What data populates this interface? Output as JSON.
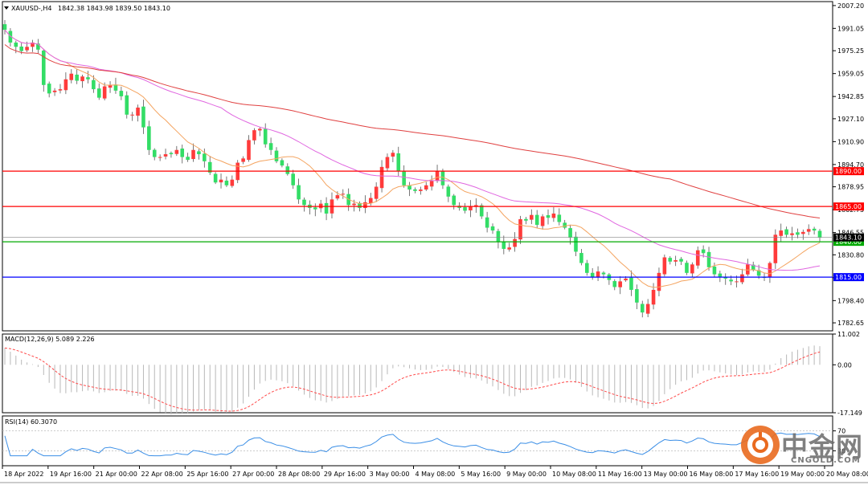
{
  "header": {
    "symbol": "XAUUSD-,H4",
    "ohlc": "1842.38 1843.98 1839.50 1843.10"
  },
  "chart_data": [
    {
      "type": "candlestick",
      "panel": "main",
      "title": "XAUUSD-,H4",
      "ylim": [
        1777,
        2010
      ],
      "y_ticks": [
        "2007.20",
        "1991.05",
        "1975.25",
        "1959.05",
        "1942.85",
        "1927.10",
        "1910.90",
        "1894.70",
        "1878.95",
        "1862.75",
        "1846.55",
        "1830.80",
        "1814.60",
        "1798.40",
        "1782.65"
      ],
      "x_ticks": [
        "18 Apr 2022",
        "19 Apr 16:00",
        "21 Apr 00:00",
        "22 Apr 08:00",
        "25 Apr 16:00",
        "27 Apr 00:00",
        "28 Apr 08:00",
        "29 Apr 16:00",
        "3 May 00:00",
        "4 May 08:00",
        "5 May 16:00",
        "9 May 00:00",
        "10 May 08:00",
        "11 May 16:00",
        "13 May 00:00",
        "16 May 08:00",
        "17 May 16:00",
        "19 May 00:00",
        "20 May 08:00"
      ],
      "close": [
        1990,
        1981,
        1978,
        1975,
        1978,
        1981,
        1976,
        1951,
        1945,
        1947,
        1948,
        1955,
        1959,
        1954,
        1957,
        1955,
        1948,
        1942,
        1950,
        1951,
        1947,
        1943,
        1930,
        1930,
        1935,
        1921,
        1905,
        1900,
        1900,
        1902,
        1902,
        1905,
        1900,
        1898,
        1905,
        1902,
        1897,
        1889,
        1882,
        1884,
        1880,
        1884,
        1896,
        1899,
        1912,
        1919,
        1920,
        1909,
        1905,
        1897,
        1894,
        1888,
        1880,
        1870,
        1866,
        1864,
        1863,
        1867,
        1860,
        1870,
        1873,
        1874,
        1866,
        1867,
        1864,
        1868,
        1871,
        1879,
        1893,
        1900,
        1903,
        1890,
        1880,
        1877,
        1876,
        1877,
        1880,
        1883,
        1890,
        1880,
        1872,
        1866,
        1864,
        1862,
        1865,
        1866,
        1858,
        1850,
        1848,
        1840,
        1835,
        1836,
        1842,
        1856,
        1855,
        1859,
        1852,
        1858,
        1857,
        1860,
        1854,
        1850,
        1843,
        1833,
        1825,
        1818,
        1815,
        1819,
        1817,
        1813,
        1808,
        1812,
        1814,
        1806,
        1797,
        1790,
        1796,
        1806,
        1818,
        1829,
        1826,
        1827,
        1826,
        1818,
        1824,
        1834,
        1832,
        1822,
        1817,
        1815,
        1814,
        1812,
        1812,
        1817,
        1824,
        1820,
        1816,
        1815,
        1825,
        1845,
        1848,
        1845,
        1846,
        1845,
        1847,
        1849,
        1848,
        1843
      ],
      "lines": [
        {
          "name": "MA-fast",
          "color": "#f4a460"
        },
        {
          "name": "MA-mid",
          "color": "#e066e0"
        },
        {
          "name": "MA-slow",
          "color": "#e04040"
        }
      ],
      "levels": [
        {
          "value": 1890,
          "label": "1890.00",
          "color": "#ff0000"
        },
        {
          "value": 1865,
          "label": "1865.00",
          "color": "#ff0000"
        },
        {
          "value": 1840,
          "label": "1840.00",
          "color": "#00aa00"
        },
        {
          "value": 1815,
          "label": "1815.00",
          "color": "#0000ff"
        },
        {
          "value": 1843.1,
          "label": "1843.10",
          "color": "#888888"
        }
      ],
      "colors": {
        "bull": "#ff3b3b",
        "bear": "#33dd66",
        "wick": "#555555"
      }
    },
    {
      "type": "histogram",
      "panel": "macd",
      "label": "MACD(12,26,9) 5.089 2.226",
      "ylim": [
        -17.149,
        11.002
      ],
      "y_ticks": [
        "11.002",
        "0.00",
        "-17.149"
      ],
      "signal_color": "#ff4a4a",
      "hist_color": "#b8b8b8"
    },
    {
      "type": "line",
      "panel": "rsi",
      "label": "RSI(14) 60.3070",
      "ylim": [
        0,
        100
      ],
      "y_ticks": [
        "70",
        "30"
      ],
      "color": "#3a8ee6"
    }
  ],
  "watermark": {
    "cn": "中金网",
    "en": "CNGOLD.COM"
  }
}
